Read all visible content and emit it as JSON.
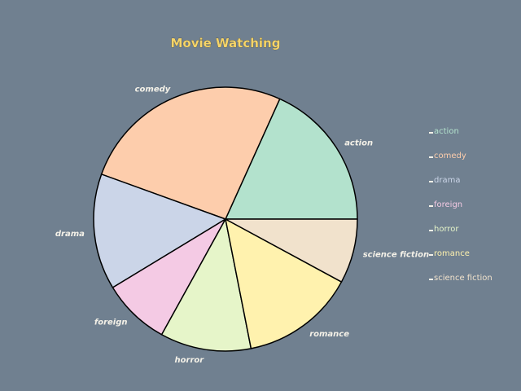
{
  "chart_data": {
    "type": "pie",
    "title": "Movie Watching",
    "categories": [
      "action",
      "comedy",
      "drama",
      "foreign",
      "horror",
      "romance",
      "science fiction"
    ],
    "values": [
      18.5,
      26.6,
      14.4,
      8.4,
      11.3,
      14.2,
      8.0
    ],
    "colors": [
      "#b3e2cd",
      "#fdcdac",
      "#cbd5e8",
      "#f4cae4",
      "#e6f5c9",
      "#fff2ae",
      "#f1e2cc"
    ],
    "legend": {
      "position": "right",
      "labels": [
        "action",
        "comedy",
        "drama",
        "foreign",
        "horror",
        "romance",
        "science fiction"
      ]
    }
  }
}
